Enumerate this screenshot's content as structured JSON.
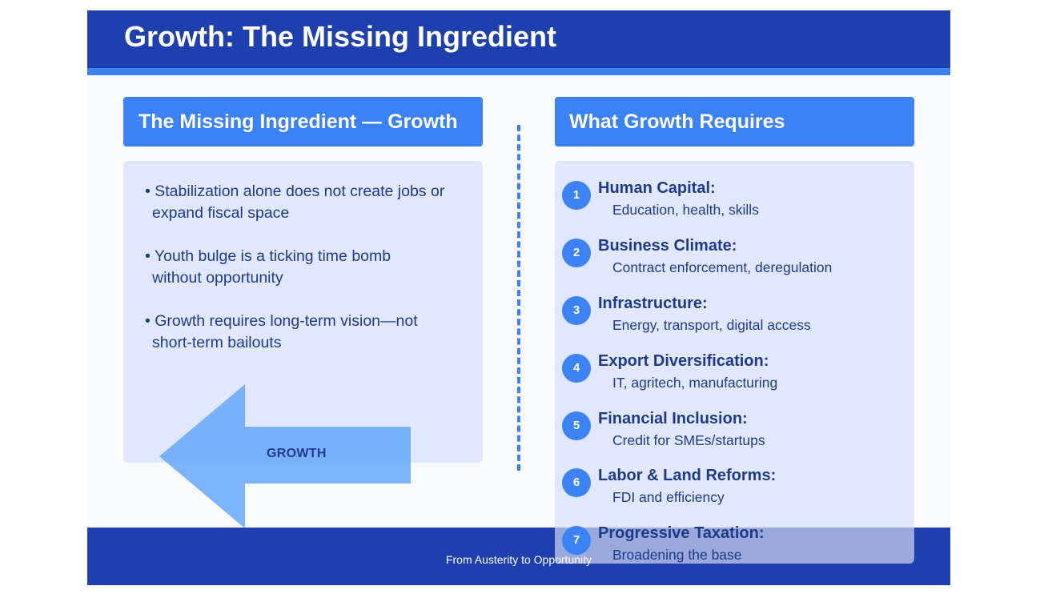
{
  "header": {
    "title": "Growth: The Missing Ingredient"
  },
  "left_panel": {
    "heading": "The Missing Ingredient — Growth",
    "bullets": [
      {
        "line1": "• Stabilization alone does not create jobs or",
        "line2": "expand fiscal space"
      },
      {
        "line1": "• Youth bulge is a ticking time bomb",
        "line2": "without opportunity"
      },
      {
        "line1": "• Growth requires long-term vision—not",
        "line2": "short-term bailouts"
      }
    ],
    "arrow_label": "GROWTH"
  },
  "right_panel": {
    "heading": "What Growth Requires",
    "items": [
      {
        "num": "1",
        "title": "Human Capital:",
        "desc": "Education, health, skills"
      },
      {
        "num": "2",
        "title": "Business Climate:",
        "desc": "Contract enforcement, deregulation"
      },
      {
        "num": "3",
        "title": "Infrastructure:",
        "desc": "Energy, transport, digital access"
      },
      {
        "num": "4",
        "title": "Export Diversification:",
        "desc": "IT, agritech, manufacturing"
      },
      {
        "num": "5",
        "title": "Financial Inclusion:",
        "desc": "Credit for SMEs/startups"
      },
      {
        "num": "6",
        "title": "Labor & Land Reforms:",
        "desc": "FDI and efficiency"
      },
      {
        "num": "7",
        "title": "Progressive Taxation:",
        "desc": "Broadening the base"
      }
    ]
  },
  "footer": {
    "text": "From Austerity to Opportunity"
  },
  "colors": {
    "primary_dark": "#1e40af",
    "accent": "#3b82f6",
    "panel_bg": "#e0e7ff",
    "text_dark": "#1e3a8a"
  }
}
